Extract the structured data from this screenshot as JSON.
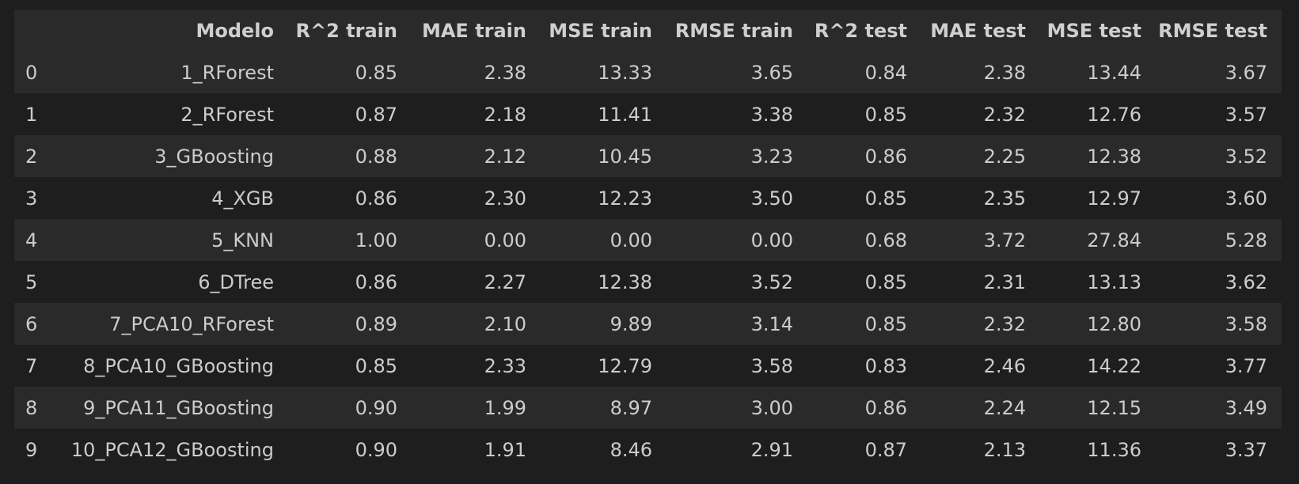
{
  "table": {
    "index_header": "",
    "columns": [
      "Modelo",
      "R^2 train",
      "MAE train",
      "MSE train",
      "RMSE train",
      "R^2 test",
      "MAE test",
      "MSE test",
      "RMSE test"
    ],
    "rows": [
      {
        "index": "0",
        "cells": [
          "1_RForest",
          "0.85",
          "2.38",
          "13.33",
          "3.65",
          "0.84",
          "2.38",
          "13.44",
          "3.67"
        ]
      },
      {
        "index": "1",
        "cells": [
          "2_RForest",
          "0.87",
          "2.18",
          "11.41",
          "3.38",
          "0.85",
          "2.32",
          "12.76",
          "3.57"
        ]
      },
      {
        "index": "2",
        "cells": [
          "3_GBoosting",
          "0.88",
          "2.12",
          "10.45",
          "3.23",
          "0.86",
          "2.25",
          "12.38",
          "3.52"
        ]
      },
      {
        "index": "3",
        "cells": [
          "4_XGB",
          "0.86",
          "2.30",
          "12.23",
          "3.50",
          "0.85",
          "2.35",
          "12.97",
          "3.60"
        ]
      },
      {
        "index": "4",
        "cells": [
          "5_KNN",
          "1.00",
          "0.00",
          "0.00",
          "0.00",
          "0.68",
          "3.72",
          "27.84",
          "5.28"
        ]
      },
      {
        "index": "5",
        "cells": [
          "6_DTree",
          "0.86",
          "2.27",
          "12.38",
          "3.52",
          "0.85",
          "2.31",
          "13.13",
          "3.62"
        ]
      },
      {
        "index": "6",
        "cells": [
          "7_PCA10_RForest",
          "0.89",
          "2.10",
          "9.89",
          "3.14",
          "0.85",
          "2.32",
          "12.80",
          "3.58"
        ]
      },
      {
        "index": "7",
        "cells": [
          "8_PCA10_GBoosting",
          "0.85",
          "2.33",
          "12.79",
          "3.58",
          "0.83",
          "2.46",
          "14.22",
          "3.77"
        ]
      },
      {
        "index": "8",
        "cells": [
          "9_PCA11_GBoosting",
          "0.90",
          "1.99",
          "8.97",
          "3.00",
          "0.86",
          "2.24",
          "12.15",
          "3.49"
        ]
      },
      {
        "index": "9",
        "cells": [
          "10_PCA12_GBoosting",
          "0.90",
          "1.91",
          "8.46",
          "2.91",
          "0.87",
          "2.13",
          "11.36",
          "3.37"
        ]
      }
    ]
  },
  "colors": {
    "background": "#1e1e1e",
    "header_background": "#2a2a2a",
    "stripe_background": "#2a2a2a",
    "text": "#cccccc"
  }
}
